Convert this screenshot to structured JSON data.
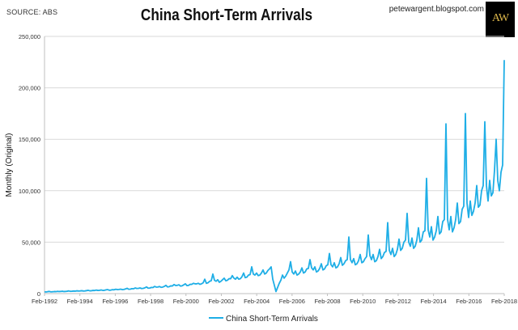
{
  "header": {
    "source": "SOURCE: ABS",
    "title": "China Short-Term Arrivals",
    "blog": "petewargent.blogspot.com",
    "logo_text": "AW"
  },
  "colors": {
    "series": "#1eaee6",
    "axis": "#bfbfbf",
    "grid": "#d9d9d9",
    "text": "#333333"
  },
  "chart_data": {
    "type": "line",
    "title": "China Short-Term Arrivals",
    "ylabel": "Monthly (Original)",
    "xlabel": "",
    "ylim": [
      0,
      250000
    ],
    "yticks": [
      0,
      50000,
      100000,
      150000,
      200000,
      250000
    ],
    "ytick_labels": [
      "0",
      "50,000",
      "100,000",
      "150,000",
      "200,000",
      "250,000"
    ],
    "xticks": [
      "Feb-1992",
      "Feb-1994",
      "Feb-1996",
      "Feb-1998",
      "Feb-2000",
      "Feb-2002",
      "Feb-2004",
      "Feb-2006",
      "Feb-2008",
      "Feb-2010",
      "Feb-2012",
      "Feb-2014",
      "Feb-2016",
      "Feb-2018"
    ],
    "x_start": "1992-02",
    "grid": true,
    "legend": "bottom",
    "series": [
      {
        "name": "China Short-Term Arrivals",
        "values": [
          1800,
          1600,
          1900,
          2100,
          1700,
          1800,
          2000,
          1900,
          2200,
          2000,
          2100,
          2300,
          2000,
          2100,
          2300,
          2600,
          2200,
          2300,
          2500,
          2400,
          2700,
          2500,
          2600,
          2800,
          2500,
          2600,
          2900,
          3200,
          2700,
          2800,
          3100,
          3000,
          3400,
          3100,
          3200,
          3500,
          3100,
          3200,
          3600,
          3900,
          3300,
          3400,
          3800,
          3700,
          4200,
          3900,
          4000,
          4300,
          3900,
          4000,
          4500,
          5200,
          4200,
          4300,
          4800,
          4700,
          5500,
          5000,
          5100,
          5500,
          4900,
          5100,
          5600,
          6500,
          5300,
          5400,
          6000,
          5900,
          7000,
          6300,
          6400,
          6900,
          6100,
          6300,
          7000,
          8000,
          6500,
          6700,
          7500,
          7400,
          8800,
          7900,
          8000,
          8600,
          7300,
          7600,
          8500,
          9500,
          7800,
          8000,
          9000,
          9000,
          10000,
          9500,
          9500,
          10000,
          9000,
          9500,
          10500,
          14000,
          10000,
          10500,
          12000,
          12500,
          19000,
          13000,
          12000,
          13500,
          11000,
          12000,
          13500,
          15000,
          12500,
          13000,
          14500,
          14500,
          17500,
          15000,
          14000,
          16000,
          14000,
          14500,
          16500,
          20000,
          15500,
          16000,
          18000,
          18500,
          26000,
          19000,
          18000,
          20000,
          17500,
          18000,
          20000,
          23000,
          19000,
          20000,
          22500,
          24000,
          26000,
          14000,
          8000,
          2000,
          6000,
          10000,
          13000,
          18000,
          15000,
          17000,
          20000,
          23000,
          31000,
          21000,
          19000,
          22000,
          18000,
          19000,
          21000,
          25000,
          20000,
          21000,
          24000,
          24500,
          33000,
          25000,
          23000,
          26000,
          21000,
          22000,
          24500,
          29000,
          23000,
          24000,
          27000,
          28000,
          39000,
          28000,
          26000,
          30000,
          25000,
          26000,
          29000,
          35000,
          27500,
          29000,
          32000,
          33000,
          55000,
          33000,
          30000,
          34000,
          28000,
          29000,
          32000,
          38000,
          30000,
          31000,
          34000,
          36000,
          57000,
          37000,
          33000,
          38000,
          31000,
          32000,
          36000,
          43000,
          34000,
          36000,
          40000,
          41000,
          69000,
          42000,
          38000,
          44000,
          36000,
          38000,
          43000,
          53000,
          42000,
          44000,
          50000,
          52000,
          78000,
          50000,
          46000,
          54000,
          44000,
          46000,
          52000,
          64000,
          50000,
          52000,
          60000,
          61000,
          112000,
          62000,
          55000,
          65000,
          52000,
          55000,
          61000,
          75000,
          58000,
          60000,
          70000,
          72000,
          165000,
          72000,
          62000,
          75000,
          60000,
          64000,
          72000,
          88000,
          68000,
          70000,
          82000,
          85000,
          175000,
          88000,
          74000,
          90000,
          76000,
          80000,
          88000,
          105000,
          84000,
          86000,
          100000,
          105000,
          167000,
          105000,
          90000,
          110000,
          95000,
          98000,
          120000,
          150000,
          110000,
          100000,
          118000,
          125000,
          227000
        ]
      }
    ]
  }
}
